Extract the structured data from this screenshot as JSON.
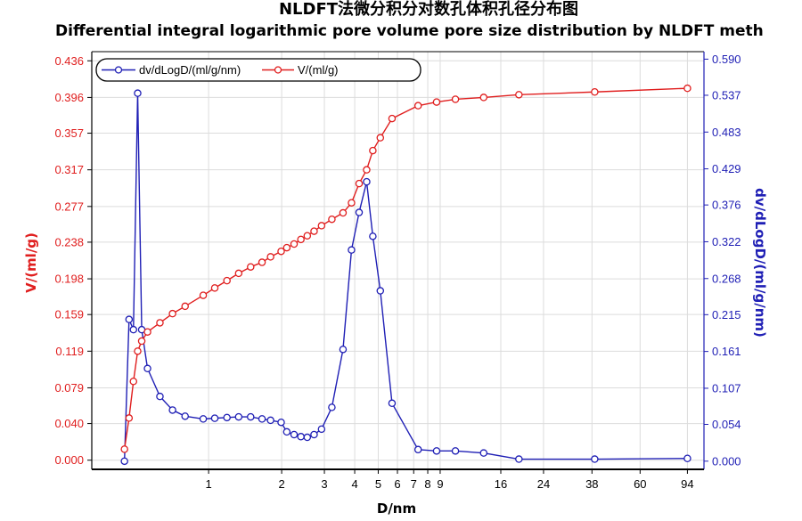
{
  "chart_data": {
    "type": "line",
    "title": "NLDFT法微分积分对数孔体积孔径分布图",
    "subtitle": "Differential integral logarithmic pore volume pore size distribution by NLDFT meth",
    "xlabel": "D/nm",
    "ylabel_left": "V/(ml/g)",
    "ylabel_right": "dv/dLogD/(ml/g/nm)",
    "x_scale": "log",
    "xlim": [
      0.33,
      110
    ],
    "x_tick_values": [
      1,
      2,
      3,
      4,
      5,
      6,
      7,
      8,
      9,
      16,
      24,
      38,
      60,
      94
    ],
    "x_tick_labels": [
      "1",
      "2",
      "3",
      "4",
      "5",
      "6",
      "7",
      "8",
      "9",
      "16",
      "24",
      "38",
      "60",
      "94"
    ],
    "ylim_left": [
      -0.01,
      0.446
    ],
    "ylim_right": [
      -0.012,
      0.601
    ],
    "y_left_ticks": [
      "0.000",
      "0.040",
      "0.079",
      "0.119",
      "0.159",
      "0.198",
      "0.238",
      "0.277",
      "0.317",
      "0.357",
      "0.396",
      "0.436"
    ],
    "y_right_ticks": [
      "0.000",
      "0.054",
      "0.107",
      "0.161",
      "0.215",
      "0.268",
      "0.322",
      "0.376",
      "0.429",
      "0.483",
      "0.537",
      "0.590"
    ],
    "grid": true,
    "legend_placement": "top-left",
    "series": [
      {
        "name": "dv/dLogD/(ml/g/nm)",
        "axis": "right",
        "color": "#1f1fb5",
        "points": [
          [
            0.45,
            0.0
          ],
          [
            0.47,
            0.208
          ],
          [
            0.49,
            0.193
          ],
          [
            0.51,
            0.54
          ],
          [
            0.53,
            0.193
          ],
          [
            0.56,
            0.136
          ],
          [
            0.63,
            0.095
          ],
          [
            0.71,
            0.075
          ],
          [
            0.8,
            0.066
          ],
          [
            0.95,
            0.062
          ],
          [
            1.06,
            0.063
          ],
          [
            1.19,
            0.064
          ],
          [
            1.33,
            0.065
          ],
          [
            1.49,
            0.065
          ],
          [
            1.66,
            0.062
          ],
          [
            1.8,
            0.06
          ],
          [
            1.99,
            0.057
          ],
          [
            2.1,
            0.043
          ],
          [
            2.25,
            0.039
          ],
          [
            2.4,
            0.036
          ],
          [
            2.55,
            0.035
          ],
          [
            2.72,
            0.039
          ],
          [
            2.92,
            0.047
          ],
          [
            3.22,
            0.079
          ],
          [
            3.58,
            0.164
          ],
          [
            3.88,
            0.31
          ],
          [
            4.17,
            0.365
          ],
          [
            4.48,
            0.41
          ],
          [
            4.75,
            0.33
          ],
          [
            5.1,
            0.25
          ],
          [
            5.7,
            0.085
          ],
          [
            7.3,
            0.017
          ],
          [
            8.7,
            0.015
          ],
          [
            10.4,
            0.015
          ],
          [
            13.6,
            0.012
          ],
          [
            19.0,
            0.003
          ],
          [
            39.0,
            0.003
          ],
          [
            94.0,
            0.004
          ]
        ]
      },
      {
        "name": "V/(ml/g)",
        "axis": "left",
        "color": "#e01e1e",
        "points": [
          [
            0.45,
            0.012
          ],
          [
            0.47,
            0.046
          ],
          [
            0.49,
            0.086
          ],
          [
            0.51,
            0.119
          ],
          [
            0.53,
            0.13
          ],
          [
            0.56,
            0.14
          ],
          [
            0.63,
            0.15
          ],
          [
            0.71,
            0.16
          ],
          [
            0.8,
            0.168
          ],
          [
            0.95,
            0.18
          ],
          [
            1.06,
            0.188
          ],
          [
            1.19,
            0.196
          ],
          [
            1.33,
            0.204
          ],
          [
            1.49,
            0.211
          ],
          [
            1.66,
            0.216
          ],
          [
            1.8,
            0.222
          ],
          [
            1.99,
            0.228
          ],
          [
            2.1,
            0.232
          ],
          [
            2.25,
            0.236
          ],
          [
            2.4,
            0.241
          ],
          [
            2.55,
            0.245
          ],
          [
            2.72,
            0.25
          ],
          [
            2.92,
            0.256
          ],
          [
            3.22,
            0.263
          ],
          [
            3.58,
            0.27
          ],
          [
            3.88,
            0.281
          ],
          [
            4.17,
            0.302
          ],
          [
            4.48,
            0.317
          ],
          [
            4.75,
            0.338
          ],
          [
            5.1,
            0.352
          ],
          [
            5.7,
            0.373
          ],
          [
            7.3,
            0.387
          ],
          [
            8.7,
            0.391
          ],
          [
            10.4,
            0.394
          ],
          [
            13.6,
            0.396
          ],
          [
            19.0,
            0.399
          ],
          [
            39.0,
            0.402
          ],
          [
            94.0,
            0.406
          ]
        ]
      }
    ]
  }
}
